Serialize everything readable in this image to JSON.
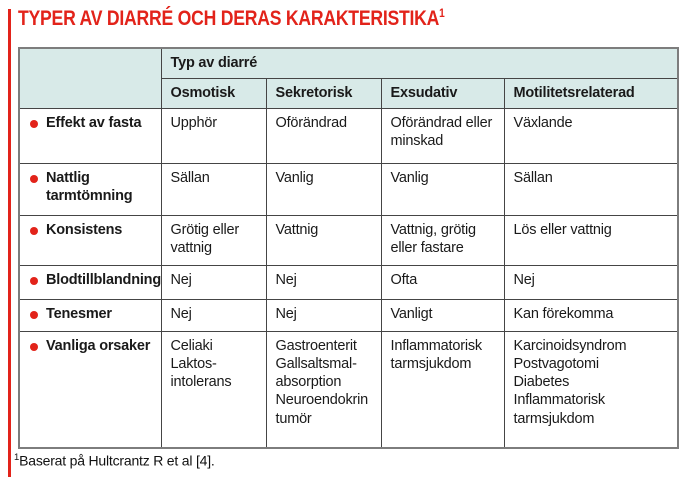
{
  "title": {
    "text": "TYPER AV DIARRÉ OCH DERAS KARAKTERISTIKA",
    "superscript": "1"
  },
  "colors": {
    "accent_red": "#e2231a",
    "header_bg": "#d8eae8",
    "border": "#454545"
  },
  "table": {
    "group_header": "Typ av diarré",
    "columns": [
      "Osmotisk",
      "Sekretorisk",
      "Exsudativ",
      "Motilitetsrelaterad"
    ],
    "rows": [
      {
        "label": "Effekt av fasta",
        "cells": [
          "Upphör",
          "Oförändrad",
          "Oförändrad eller\nminskad",
          "Växlande"
        ]
      },
      {
        "label": "Nattlig\ntarmtömning",
        "cells": [
          "Sällan",
          "Vanlig",
          "Vanlig",
          "Sällan"
        ]
      },
      {
        "label": "Konsistens",
        "cells": [
          "Grötig eller\nvattnig",
          "Vattnig",
          "Vattnig, grötig\neller fastare",
          "Lös eller vattnig"
        ]
      },
      {
        "label": "Blodtillblandning",
        "cells": [
          "Nej",
          "Nej",
          "Ofta",
          "Nej"
        ]
      },
      {
        "label": "Tenesmer",
        "cells": [
          "Nej",
          "Nej",
          "Vanligt",
          "Kan förekomma"
        ]
      },
      {
        "label": "Vanliga orsaker",
        "cells": [
          "Celiaki\nLaktos-\nintolerans",
          "Gastroenterit\nGallsaltsmal-\nabsorption\nNeuroendokrin\ntumör",
          "Inflammatorisk\ntarmsjukdom",
          "Karcinoidsyndrom\nPostvagotomi\nDiabetes\nInflammatorisk\ntarmsjukdom"
        ]
      }
    ]
  },
  "footnote": {
    "superscript": "1",
    "text": "Baserat på Hultcrantz R et al [4]."
  }
}
